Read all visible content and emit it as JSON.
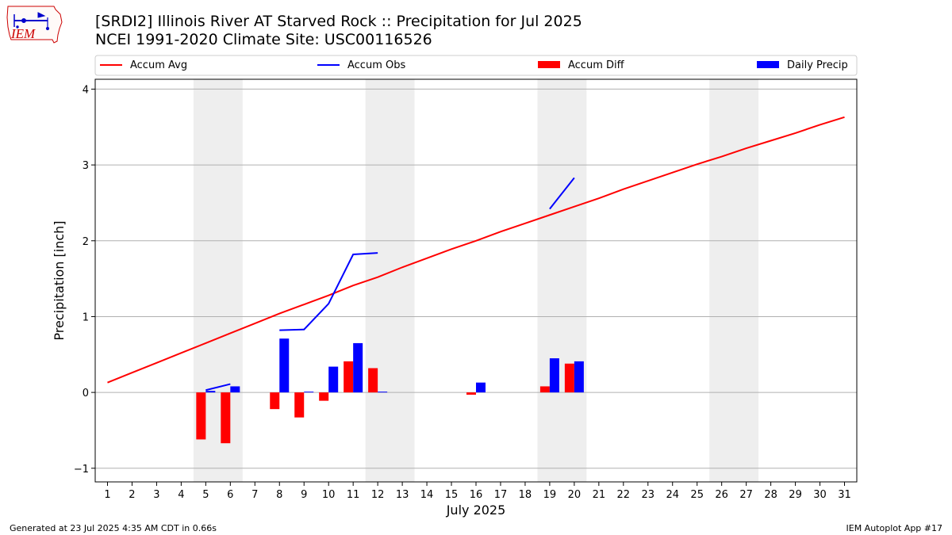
{
  "logo": {
    "text": "IEM",
    "icon": "iowa-state-outline-with-weather-station-logo",
    "color": "#cc0000"
  },
  "title": {
    "line1": "[SRDI2] Illinois River  AT Starved Rock :: Precipitation for Jul 2025",
    "line2": "NCEI 1991-2020 Climate Site: USC00116526"
  },
  "footer": {
    "left": "Generated at 23 Jul 2025 4:35 AM CDT in 0.66s",
    "right": "IEM Autoplot App #17"
  },
  "chart_data": {
    "type": "bar",
    "xlabel": "July 2025",
    "ylabel": "Precipitation [inch]",
    "xlim": [
      0.5,
      31.5
    ],
    "ylim": [
      -1.18,
      4.13
    ],
    "x_ticks": [
      1,
      2,
      3,
      4,
      5,
      6,
      7,
      8,
      9,
      10,
      11,
      12,
      13,
      14,
      15,
      16,
      17,
      18,
      19,
      20,
      21,
      22,
      23,
      24,
      25,
      26,
      27,
      28,
      29,
      30,
      31
    ],
    "y_ticks": [
      -1,
      0,
      1,
      2,
      3,
      4
    ],
    "grid": "horizontal",
    "legend_position": "top",
    "weekend_shading": {
      "color": "#eeeeee",
      "ranges": [
        [
          4.5,
          6.5
        ],
        [
          11.5,
          13.5
        ],
        [
          18.5,
          20.5
        ],
        [
          25.5,
          27.5
        ]
      ]
    },
    "series": [
      {
        "name": "Accum Avg",
        "type": "line",
        "color": "#ff0000",
        "x": [
          1,
          2,
          3,
          4,
          5,
          6,
          7,
          8,
          9,
          10,
          11,
          12,
          13,
          14,
          15,
          16,
          17,
          18,
          19,
          20,
          21,
          22,
          23,
          24,
          25,
          26,
          27,
          28,
          29,
          30,
          31
        ],
        "values": [
          0.13,
          0.26,
          0.39,
          0.52,
          0.65,
          0.78,
          0.91,
          1.04,
          1.16,
          1.28,
          1.41,
          1.52,
          1.65,
          1.77,
          1.89,
          2.0,
          2.12,
          2.23,
          2.34,
          2.45,
          2.56,
          2.68,
          2.79,
          2.9,
          3.01,
          3.11,
          3.22,
          3.32,
          3.42,
          3.53,
          3.63
        ]
      },
      {
        "name": "Accum Obs",
        "type": "line",
        "color": "#0000ff",
        "segments": [
          {
            "x": [
              5,
              6
            ],
            "values": [
              0.03,
              0.11
            ]
          },
          {
            "x": [
              8,
              9,
              10,
              11,
              12
            ],
            "values": [
              0.82,
              0.83,
              1.17,
              1.82,
              1.84
            ]
          },
          {
            "x": [
              19,
              20
            ],
            "values": [
              2.42,
              2.83
            ]
          }
        ]
      },
      {
        "name": "Accum Diff",
        "type": "bar",
        "color": "#ff0000",
        "x": [
          5,
          6,
          8,
          9,
          10,
          11,
          12,
          16,
          19,
          20
        ],
        "values": [
          -0.62,
          -0.67,
          -0.22,
          -0.33,
          -0.11,
          0.41,
          0.32,
          -0.03,
          0.08,
          0.38
        ]
      },
      {
        "name": "Daily Precip",
        "type": "bar",
        "color": "#0000ff",
        "x": [
          5,
          6,
          8,
          9,
          10,
          11,
          12,
          16,
          19,
          20
        ],
        "values": [
          0.02,
          0.08,
          0.71,
          0.01,
          0.34,
          0.65,
          0.01,
          0.13,
          0.45,
          0.41
        ]
      }
    ]
  }
}
